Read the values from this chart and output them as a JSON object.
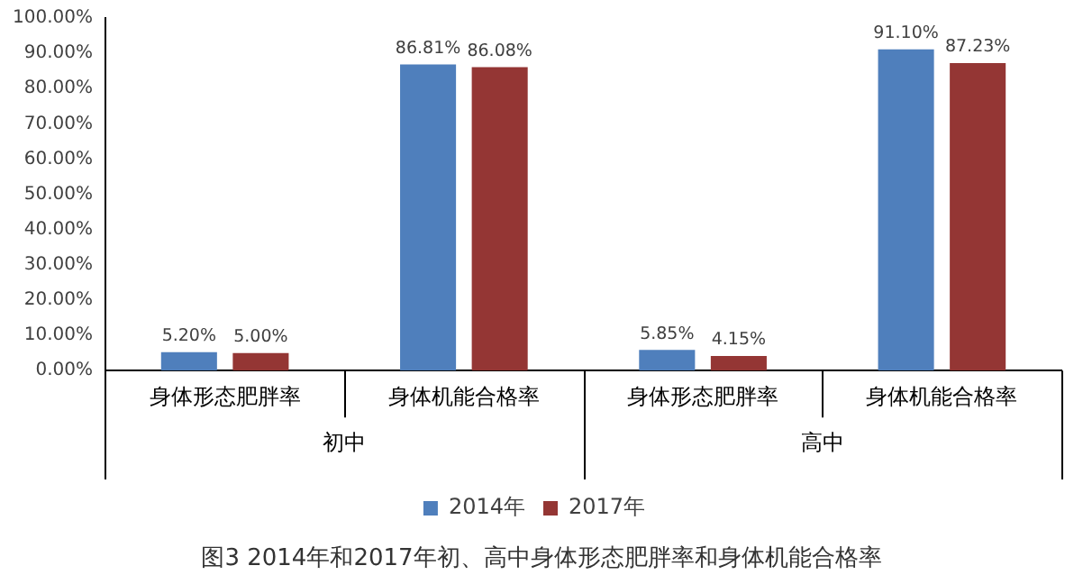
{
  "chart_data": {
    "type": "bar",
    "categories": [
      "身体形态肥胖率",
      "身体机能合格率",
      "身体形态肥胖率",
      "身体机能合格率"
    ],
    "series": [
      {
        "name": "2014年",
        "color": "#4f7fbc",
        "values": [
          5.2,
          86.81,
          5.85,
          91.1
        ],
        "value_labels": [
          "5.20%",
          "86.81%",
          "5.85%",
          "91.10%"
        ]
      },
      {
        "name": "2017年",
        "color": "#943634",
        "values": [
          5.0,
          86.08,
          4.15,
          87.23
        ],
        "value_labels": [
          "5.00%",
          "86.08%",
          "4.15%",
          "87.23%"
        ]
      }
    ],
    "ylim": [
      0,
      100
    ],
    "yticks": [
      {
        "value": 0,
        "label": "0.00%"
      },
      {
        "value": 10,
        "label": "10.00%"
      },
      {
        "value": 20,
        "label": "20.00%"
      },
      {
        "value": 30,
        "label": "30.00%"
      },
      {
        "value": 40,
        "label": "40.00%"
      },
      {
        "value": 50,
        "label": "50.00%"
      },
      {
        "value": 60,
        "label": "60.00%"
      },
      {
        "value": 70,
        "label": "70.00%"
      },
      {
        "value": 80,
        "label": "80.00%"
      },
      {
        "value": 90,
        "label": "90.00%"
      },
      {
        "value": 100,
        "label": "100.00%"
      }
    ],
    "grid": false,
    "legend": "bottom",
    "annotations": [
      "初中",
      "高中",
      "图3 2014年和2017年初、高中身体形态肥胖率和身体机能合格率"
    ]
  }
}
